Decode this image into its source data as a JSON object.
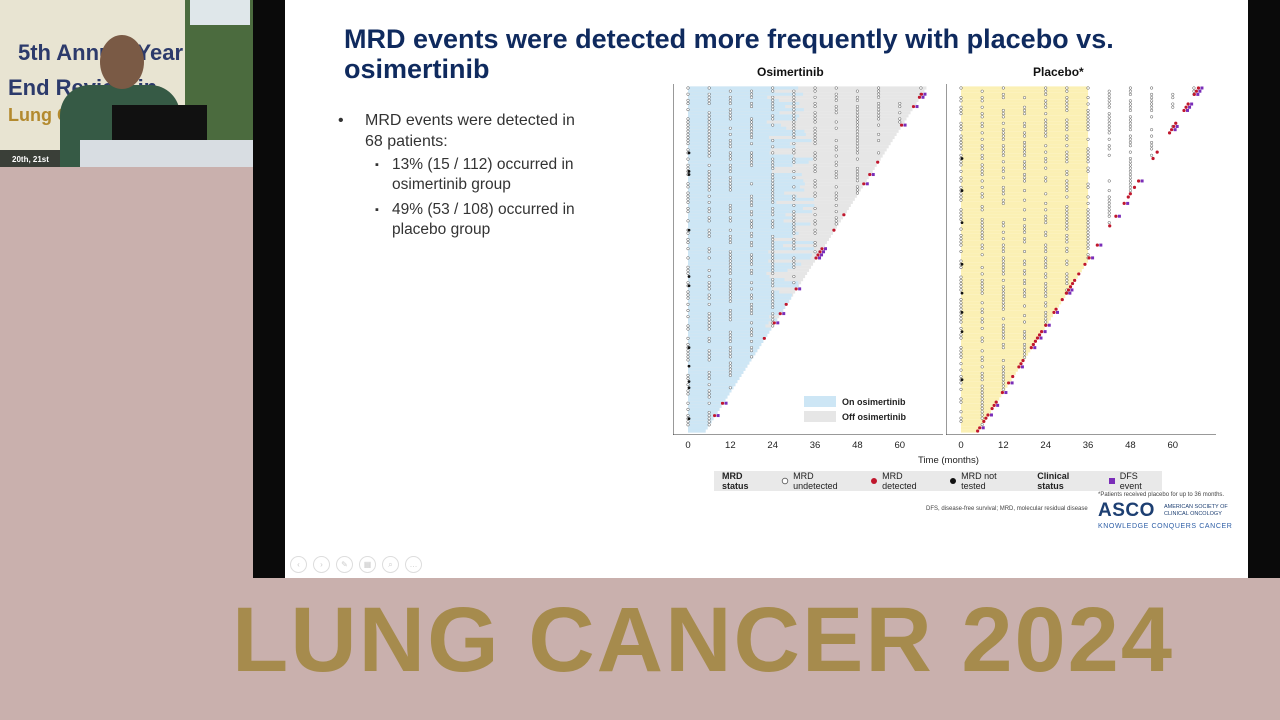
{
  "video_inset": {
    "banner_lines": [
      "5th Annual Year",
      "End Review in",
      "Lung Cancer"
    ],
    "date_text": "20th, 21st"
  },
  "slide": {
    "title": "MRD events were detected more frequently with placebo vs. osimertinib",
    "bullet_main": "MRD events were detected in 68 patients:",
    "sub_bullets": [
      "13% (15 / 112) occurred in osimertinib group",
      "49% (53 / 108) occurred in placebo group"
    ],
    "bullet_glyph": "•",
    "sub_bullet_glyph": "▪"
  },
  "chart_data": [
    {
      "type": "scatter",
      "title": "Osimertinib",
      "xlabel": "Time (months)",
      "x_ticks": [
        "0",
        "12",
        "24",
        "36",
        "48",
        "60"
      ],
      "xlim": [
        0,
        68
      ],
      "n_patients": 112,
      "mrd_detected_events": 15,
      "shading": [
        {
          "name": "On osimertinib",
          "color": "#cde6f5"
        },
        {
          "name": "Off osimertinib",
          "color": "#e6e6e6"
        }
      ]
    },
    {
      "type": "scatter",
      "title": "Placebo*",
      "xlabel": "Time (months)",
      "x_ticks": [
        "0",
        "12",
        "24",
        "36",
        "48",
        "60"
      ],
      "xlim": [
        0,
        68
      ],
      "n_patients": 108,
      "mrd_detected_events": 53,
      "shading": [
        {
          "name": "On placebo",
          "color": "#fbf0b4"
        }
      ]
    }
  ],
  "legend": {
    "on_label": "On osimertinib",
    "off_label": "Off osimertinib"
  },
  "status_legend": {
    "mrd_status": "MRD status",
    "undetected": "MRD undetected",
    "detected": "MRD detected",
    "not_tested": "MRD not tested",
    "clinical_status": "Clinical status",
    "dfs_event": "DFS event"
  },
  "colors": {
    "title": "#0f2a5e",
    "detected": "#c0172d",
    "not_tested": "#111111",
    "dfs_event": "#7a2db8",
    "banner_text": "#a68b4d",
    "background": "#c9b0ad"
  },
  "footnotes": {
    "placebo_note": "*Patients received placebo for up to 36 months.",
    "abbrev": "DFS, disease-free survival; MRD, molecular residual disease"
  },
  "asco": {
    "logo": "ASCO",
    "name": "AMERICAN SOCIETY OF CLINICAL ONCOLOGY",
    "tagline": "KNOWLEDGE CONQUERS CANCER"
  },
  "banner": {
    "text": "LUNG CANCER 2024"
  }
}
